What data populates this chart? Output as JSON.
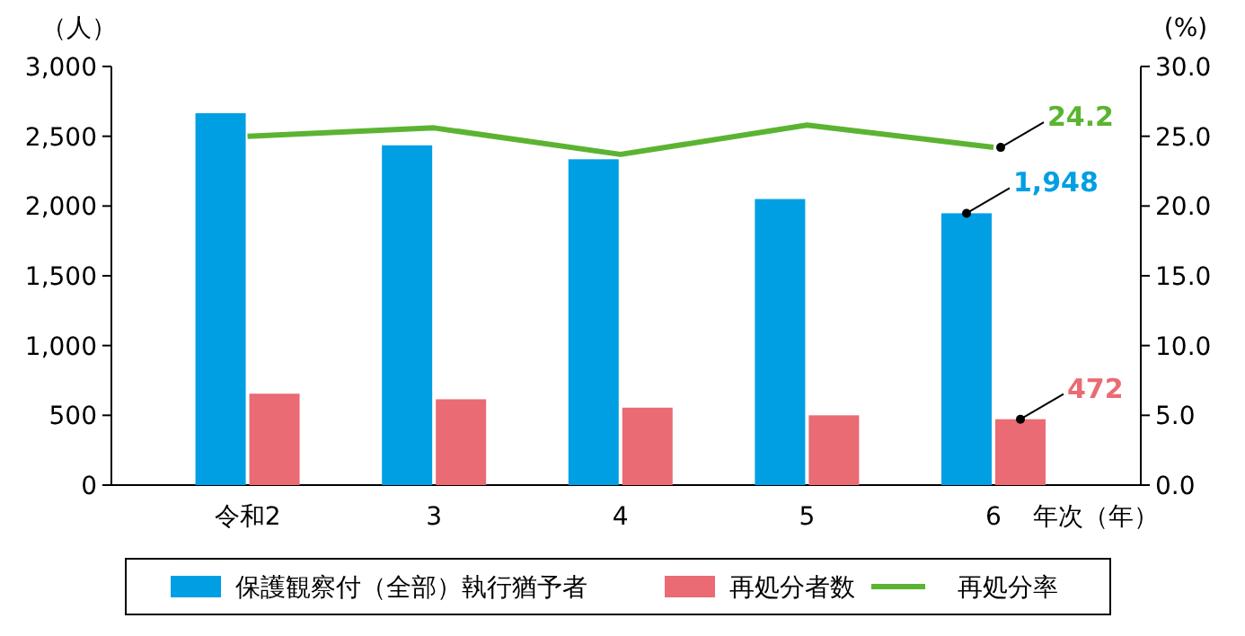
{
  "chart_data": {
    "type": "bar",
    "ylabel": "（人）",
    "y2label": "(%)",
    "xlabel": "年次（年）",
    "categories": [
      "令和2",
      "3",
      "4",
      "5",
      "6"
    ],
    "series": [
      {
        "name": "保護観察付（全部）執行猶予者",
        "color": "#009fe3",
        "values": [
          2665,
          2435,
          2335,
          2050,
          1948
        ],
        "value_labels": [
          null,
          null,
          null,
          null,
          "1,948"
        ]
      },
      {
        "name": "再処分者数",
        "color": "#ea6b73",
        "values": [
          655,
          615,
          555,
          500,
          472
        ],
        "value_labels": [
          null,
          null,
          null,
          null,
          "472"
        ]
      },
      {
        "name": "再処分率",
        "type": "line",
        "axis": "y2",
        "color": "#5bb431",
        "values": [
          25.0,
          25.6,
          23.7,
          25.8,
          24.2
        ],
        "value_labels": [
          null,
          null,
          null,
          null,
          "24.2"
        ]
      }
    ],
    "ylim": [
      0,
      3000
    ],
    "yticks": [
      {
        "value": 0,
        "label": "0"
      },
      {
        "value": 500,
        "label": "500"
      },
      {
        "value": 1000,
        "label": "1,000"
      },
      {
        "value": 1500,
        "label": "1,500"
      },
      {
        "value": 2000,
        "label": "2,000"
      },
      {
        "value": 2500,
        "label": "2,500"
      },
      {
        "value": 3000,
        "label": "3,000"
      }
    ],
    "y2lim": [
      0,
      30
    ],
    "y2ticks": [
      {
        "value": 0,
        "label": "0.0"
      },
      {
        "value": 5,
        "label": "5.0"
      },
      {
        "value": 10,
        "label": "10.0"
      },
      {
        "value": 15,
        "label": "15.0"
      },
      {
        "value": 20,
        "label": "20.0"
      },
      {
        "value": 25,
        "label": "25.0"
      },
      {
        "value": 30,
        "label": "30.0"
      }
    ],
    "legend": "bottom"
  }
}
